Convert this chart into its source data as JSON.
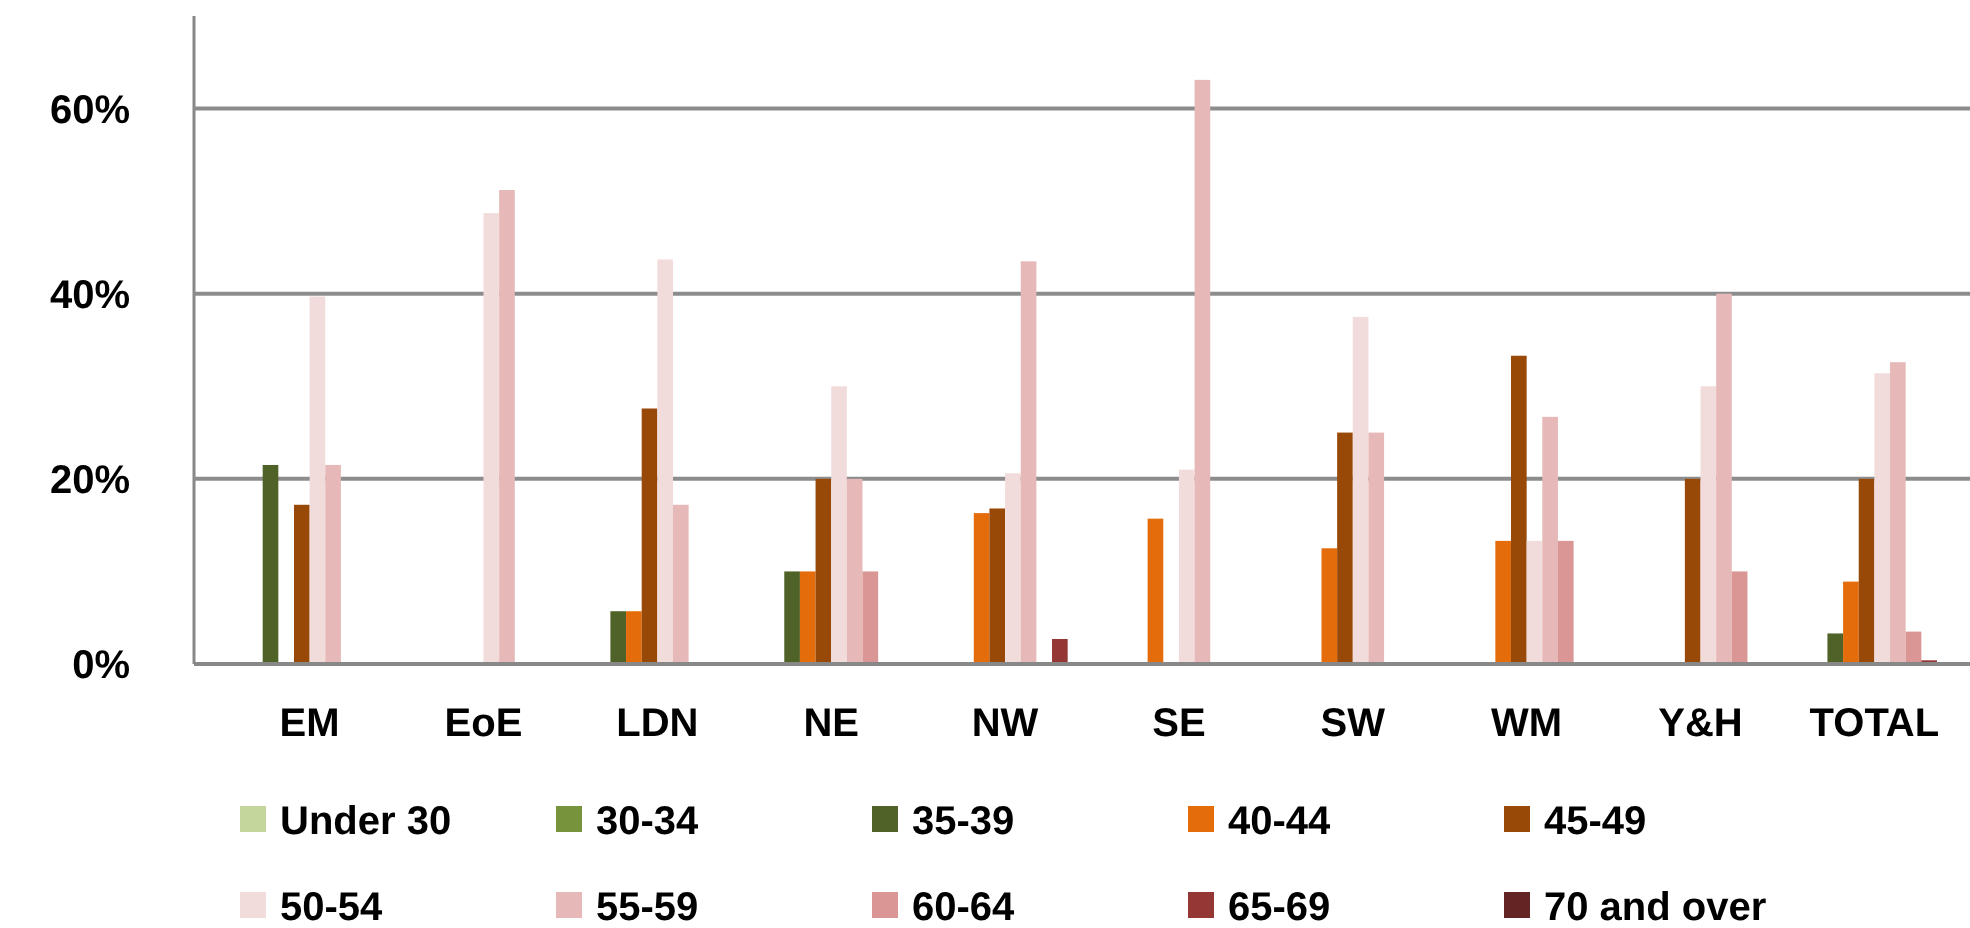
{
  "chart_data": {
    "type": "bar",
    "categories": [
      "EM",
      "EoE",
      "LDN",
      "NE",
      "NW",
      "SE",
      "SW",
      "WM",
      "Y&H",
      "TOTAL"
    ],
    "ylim": [
      0,
      70
    ],
    "yticks": [
      {
        "value": 0,
        "label": "0%"
      },
      {
        "value": 20,
        "label": "20%"
      },
      {
        "value": 40,
        "label": "40%"
      },
      {
        "value": 60,
        "label": "60%"
      }
    ],
    "grid": "y",
    "legend": "bottom",
    "series": [
      {
        "name": "Under 30",
        "color": "#c3d69b",
        "values": [
          0,
          0,
          0,
          0,
          0,
          0,
          0,
          0,
          0,
          0
        ]
      },
      {
        "name": "30-34",
        "color": "#77933c",
        "values": [
          0,
          0,
          0,
          0,
          0,
          0,
          0,
          0,
          0,
          0
        ]
      },
      {
        "name": "35-39",
        "color": "#4f6228",
        "values": [
          21.5,
          0,
          5.7,
          10,
          0,
          0,
          0,
          0,
          0,
          3.3
        ]
      },
      {
        "name": "40-44",
        "color": "#e46c0a",
        "values": [
          0,
          0,
          5.7,
          10,
          16.3,
          15.7,
          12.5,
          13.3,
          0,
          8.9
        ]
      },
      {
        "name": "45-49",
        "color": "#984807",
        "values": [
          17.2,
          0,
          27.6,
          20,
          16.8,
          0,
          25,
          33.3,
          20,
          20
        ]
      },
      {
        "name": "50-54",
        "color": "#f2dcdb",
        "values": [
          39.7,
          48.7,
          43.7,
          30,
          20.6,
          21,
          37.5,
          13.3,
          30,
          31.4
        ]
      },
      {
        "name": "55-59",
        "color": "#e6b9b8",
        "values": [
          21.5,
          51.2,
          17.2,
          20,
          43.5,
          63.1,
          25,
          26.7,
          40,
          32.6
        ]
      },
      {
        "name": "60-64",
        "color": "#d99694",
        "values": [
          0,
          0,
          0,
          10,
          0,
          0,
          0,
          13.3,
          10,
          3.5
        ]
      },
      {
        "name": "65-69",
        "color": "#953735",
        "values": [
          0,
          0,
          0,
          0,
          2.7,
          0,
          0,
          0,
          0,
          0.4
        ]
      },
      {
        "name": "70 and over",
        "color": "#632523",
        "values": [
          0,
          0,
          0,
          0,
          0,
          0,
          0,
          0,
          0,
          0
        ]
      }
    ]
  }
}
